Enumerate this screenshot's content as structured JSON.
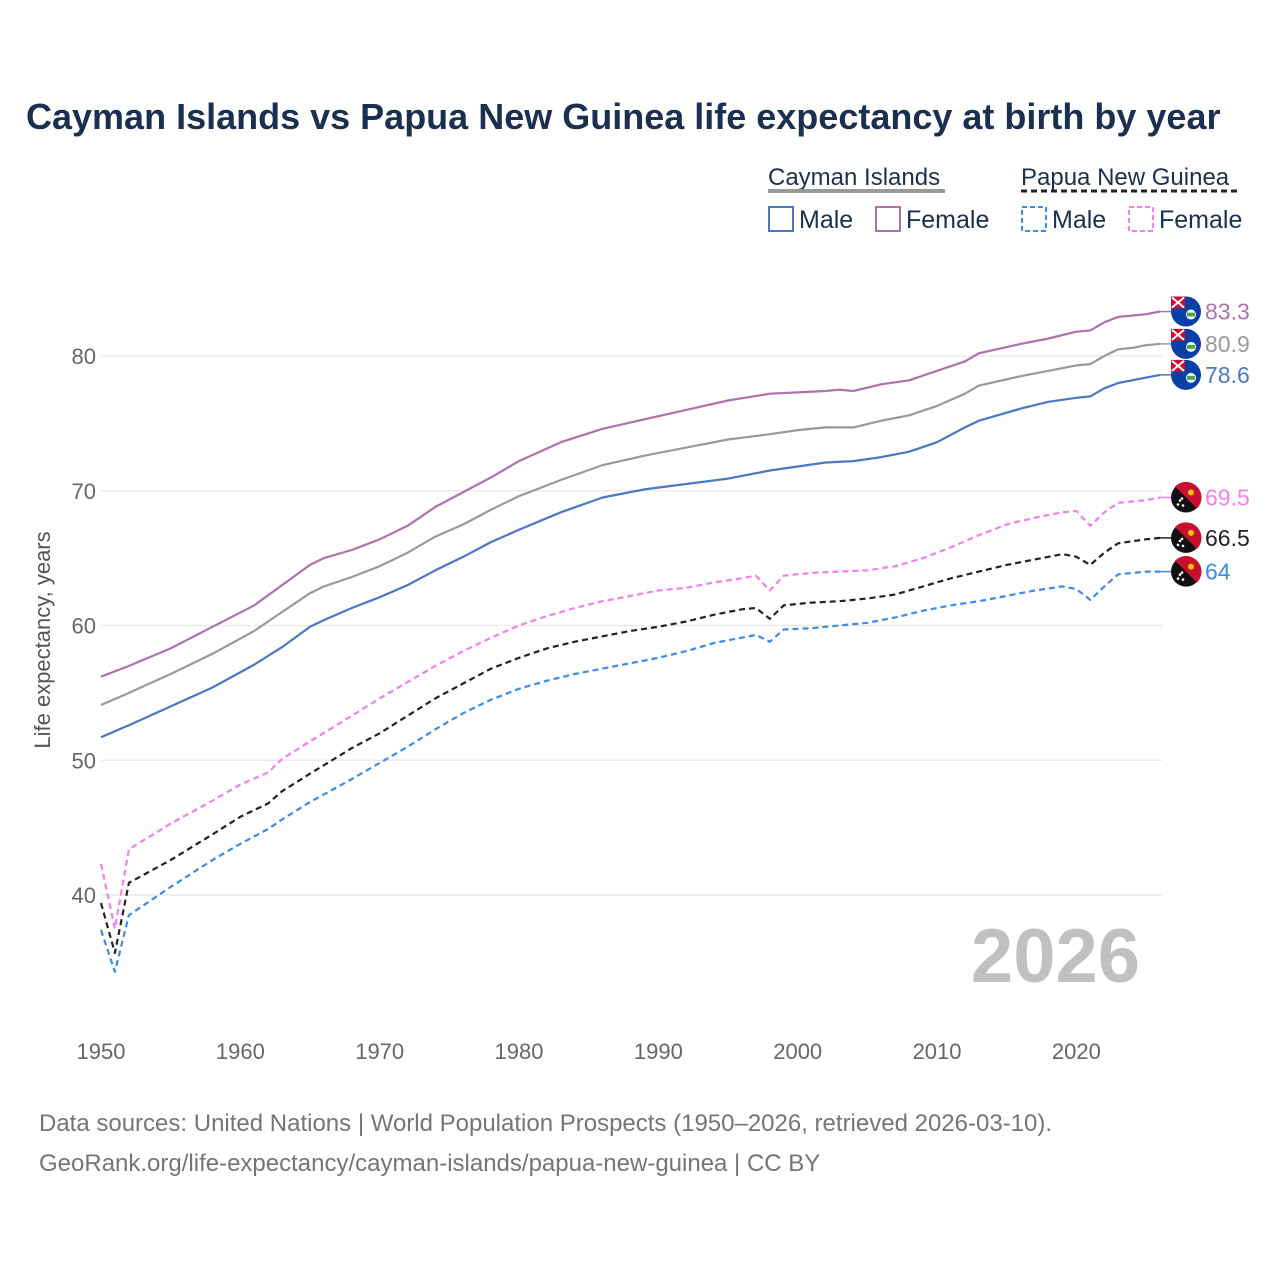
{
  "chart_data": {
    "type": "line",
    "title": "Cayman Islands vs Papua New Guinea life expectancy at birth by year",
    "ylabel": "Life expectancy, years",
    "xlabel": "",
    "xlim": [
      1950,
      2026
    ],
    "ylim": [
      34,
      84
    ],
    "x_ticks": [
      1950,
      1960,
      1970,
      1980,
      1990,
      2000,
      2010,
      2020
    ],
    "y_ticks": [
      40,
      50,
      60,
      70,
      80
    ],
    "current_year": "2026",
    "legend": {
      "groups": [
        {
          "name": "Cayman Islands",
          "line_color": "#999999",
          "dash": "solid",
          "items": [
            {
              "label": "Male",
              "color": "#4a78c4"
            },
            {
              "label": "Female",
              "color": "#b070b0"
            }
          ]
        },
        {
          "name": "Papua New Guinea",
          "line_color": "#222222",
          "dash": "dashed",
          "items": [
            {
              "label": "Male",
              "color": "#3d8be8"
            },
            {
              "label": "Female",
              "color": "#f47ef0"
            }
          ]
        }
      ]
    },
    "series": [
      {
        "name": "Cayman Islands Female",
        "color": "#b070b0",
        "dash": "solid",
        "end_label": "83.3",
        "flag": "cayman",
        "points": [
          [
            1950,
            56.2
          ],
          [
            1952,
            57.0
          ],
          [
            1955,
            58.3
          ],
          [
            1958,
            59.9
          ],
          [
            1961,
            61.5
          ],
          [
            1963,
            63.0
          ],
          [
            1965,
            64.5
          ],
          [
            1966,
            65.0
          ],
          [
            1968,
            65.6
          ],
          [
            1970,
            66.4
          ],
          [
            1972,
            67.4
          ],
          [
            1974,
            68.8
          ],
          [
            1976,
            69.9
          ],
          [
            1978,
            71.0
          ],
          [
            1980,
            72.2
          ],
          [
            1983,
            73.6
          ],
          [
            1986,
            74.6
          ],
          [
            1989,
            75.3
          ],
          [
            1992,
            76.0
          ],
          [
            1995,
            76.7
          ],
          [
            1998,
            77.2
          ],
          [
            2000,
            77.3
          ],
          [
            2002,
            77.4
          ],
          [
            2003,
            77.5
          ],
          [
            2004,
            77.4
          ],
          [
            2006,
            77.9
          ],
          [
            2008,
            78.2
          ],
          [
            2010,
            78.9
          ],
          [
            2012,
            79.6
          ],
          [
            2013,
            80.2
          ],
          [
            2016,
            80.9
          ],
          [
            2018,
            81.3
          ],
          [
            2020,
            81.8
          ],
          [
            2021,
            81.9
          ],
          [
            2022,
            82.5
          ],
          [
            2023,
            82.9
          ],
          [
            2024,
            83.0
          ],
          [
            2025,
            83.1
          ],
          [
            2026,
            83.3
          ]
        ]
      },
      {
        "name": "Cayman Islands Total",
        "color": "#999999",
        "dash": "solid",
        "end_label": "80.9",
        "flag": "cayman",
        "points": [
          [
            1950,
            54.1
          ],
          [
            1952,
            55.0
          ],
          [
            1955,
            56.4
          ],
          [
            1958,
            57.9
          ],
          [
            1961,
            59.6
          ],
          [
            1963,
            61.0
          ],
          [
            1965,
            62.4
          ],
          [
            1966,
            62.9
          ],
          [
            1968,
            63.6
          ],
          [
            1970,
            64.4
          ],
          [
            1972,
            65.4
          ],
          [
            1974,
            66.6
          ],
          [
            1976,
            67.5
          ],
          [
            1978,
            68.6
          ],
          [
            1980,
            69.6
          ],
          [
            1983,
            70.8
          ],
          [
            1986,
            71.9
          ],
          [
            1989,
            72.6
          ],
          [
            1992,
            73.2
          ],
          [
            1995,
            73.8
          ],
          [
            1998,
            74.2
          ],
          [
            2000,
            74.5
          ],
          [
            2002,
            74.7
          ],
          [
            2004,
            74.7
          ],
          [
            2006,
            75.2
          ],
          [
            2008,
            75.6
          ],
          [
            2010,
            76.3
          ],
          [
            2012,
            77.2
          ],
          [
            2013,
            77.8
          ],
          [
            2016,
            78.5
          ],
          [
            2018,
            78.9
          ],
          [
            2020,
            79.3
          ],
          [
            2021,
            79.4
          ],
          [
            2022,
            80.0
          ],
          [
            2023,
            80.5
          ],
          [
            2024,
            80.6
          ],
          [
            2025,
            80.8
          ],
          [
            2026,
            80.9
          ]
        ]
      },
      {
        "name": "Cayman Islands Male",
        "color": "#4a78c4",
        "dash": "solid",
        "end_label": "78.6",
        "flag": "cayman",
        "points": [
          [
            1950,
            51.7
          ],
          [
            1952,
            52.6
          ],
          [
            1955,
            54.0
          ],
          [
            1958,
            55.4
          ],
          [
            1961,
            57.1
          ],
          [
            1963,
            58.4
          ],
          [
            1965,
            59.9
          ],
          [
            1966,
            60.4
          ],
          [
            1968,
            61.3
          ],
          [
            1970,
            62.1
          ],
          [
            1972,
            63.0
          ],
          [
            1974,
            64.1
          ],
          [
            1976,
            65.1
          ],
          [
            1978,
            66.2
          ],
          [
            1980,
            67.1
          ],
          [
            1983,
            68.4
          ],
          [
            1986,
            69.5
          ],
          [
            1989,
            70.1
          ],
          [
            1992,
            70.5
          ],
          [
            1995,
            70.9
          ],
          [
            1998,
            71.5
          ],
          [
            2000,
            71.8
          ],
          [
            2002,
            72.1
          ],
          [
            2004,
            72.2
          ],
          [
            2006,
            72.5
          ],
          [
            2008,
            72.9
          ],
          [
            2010,
            73.6
          ],
          [
            2012,
            74.7
          ],
          [
            2013,
            75.2
          ],
          [
            2016,
            76.1
          ],
          [
            2018,
            76.6
          ],
          [
            2020,
            76.9
          ],
          [
            2021,
            77.0
          ],
          [
            2022,
            77.6
          ],
          [
            2023,
            78.0
          ],
          [
            2024,
            78.2
          ],
          [
            2025,
            78.4
          ],
          [
            2026,
            78.6
          ]
        ]
      },
      {
        "name": "Papua New Guinea Female",
        "color": "#f47ef0",
        "dash": "dashed",
        "end_label": "69.5",
        "flag": "png",
        "points": [
          [
            1950,
            42.3
          ],
          [
            1951,
            37.5
          ],
          [
            1952,
            43.4
          ],
          [
            1955,
            45.3
          ],
          [
            1958,
            47.0
          ],
          [
            1960,
            48.2
          ],
          [
            1962,
            49.1
          ],
          [
            1963,
            50.1
          ],
          [
            1965,
            51.4
          ],
          [
            1968,
            53.3
          ],
          [
            1970,
            54.6
          ],
          [
            1972,
            55.8
          ],
          [
            1974,
            57.0
          ],
          [
            1976,
            58.1
          ],
          [
            1978,
            59.1
          ],
          [
            1980,
            60.0
          ],
          [
            1982,
            60.7
          ],
          [
            1984,
            61.3
          ],
          [
            1986,
            61.8
          ],
          [
            1988,
            62.2
          ],
          [
            1990,
            62.6
          ],
          [
            1992,
            62.8
          ],
          [
            1994,
            63.2
          ],
          [
            1996,
            63.5
          ],
          [
            1997,
            63.7
          ],
          [
            1998,
            62.6
          ],
          [
            1999,
            63.7
          ],
          [
            2001,
            63.9
          ],
          [
            2003,
            64.0
          ],
          [
            2005,
            64.1
          ],
          [
            2007,
            64.4
          ],
          [
            2009,
            65.0
          ],
          [
            2011,
            65.8
          ],
          [
            2013,
            66.7
          ],
          [
            2015,
            67.5
          ],
          [
            2017,
            68.0
          ],
          [
            2019,
            68.4
          ],
          [
            2020,
            68.5
          ],
          [
            2021,
            67.4
          ],
          [
            2022,
            68.4
          ],
          [
            2023,
            69.1
          ],
          [
            2025,
            69.3
          ],
          [
            2026,
            69.5
          ]
        ]
      },
      {
        "name": "Papua New Guinea Total",
        "color": "#222222",
        "dash": "dashed",
        "end_label": "66.5",
        "flag": "png",
        "points": [
          [
            1950,
            39.4
          ],
          [
            1951,
            35.7
          ],
          [
            1952,
            40.9
          ],
          [
            1955,
            42.6
          ],
          [
            1958,
            44.5
          ],
          [
            1960,
            45.8
          ],
          [
            1962,
            46.8
          ],
          [
            1963,
            47.7
          ],
          [
            1965,
            49.0
          ],
          [
            1968,
            50.9
          ],
          [
            1970,
            52.0
          ],
          [
            1972,
            53.3
          ],
          [
            1974,
            54.6
          ],
          [
            1976,
            55.7
          ],
          [
            1978,
            56.8
          ],
          [
            1980,
            57.6
          ],
          [
            1982,
            58.3
          ],
          [
            1984,
            58.8
          ],
          [
            1986,
            59.2
          ],
          [
            1988,
            59.6
          ],
          [
            1990,
            59.9
          ],
          [
            1992,
            60.3
          ],
          [
            1994,
            60.8
          ],
          [
            1996,
            61.2
          ],
          [
            1997,
            61.3
          ],
          [
            1998,
            60.5
          ],
          [
            1999,
            61.5
          ],
          [
            2001,
            61.7
          ],
          [
            2003,
            61.8
          ],
          [
            2005,
            62.0
          ],
          [
            2007,
            62.3
          ],
          [
            2009,
            62.9
          ],
          [
            2011,
            63.5
          ],
          [
            2013,
            64.0
          ],
          [
            2015,
            64.5
          ],
          [
            2017,
            64.9
          ],
          [
            2019,
            65.3
          ],
          [
            2020,
            65.1
          ],
          [
            2021,
            64.5
          ],
          [
            2022,
            65.4
          ],
          [
            2023,
            66.1
          ],
          [
            2025,
            66.4
          ],
          [
            2026,
            66.5
          ]
        ]
      },
      {
        "name": "Papua New Guinea Male",
        "color": "#3d8be8",
        "dash": "dashed",
        "end_label": "64",
        "flag": "png",
        "points": [
          [
            1950,
            37.4
          ],
          [
            1951,
            34.3
          ],
          [
            1952,
            38.5
          ],
          [
            1955,
            40.6
          ],
          [
            1958,
            42.6
          ],
          [
            1960,
            43.8
          ],
          [
            1962,
            44.9
          ],
          [
            1963,
            45.6
          ],
          [
            1965,
            46.9
          ],
          [
            1968,
            48.6
          ],
          [
            1970,
            49.8
          ],
          [
            1972,
            51.0
          ],
          [
            1974,
            52.3
          ],
          [
            1976,
            53.5
          ],
          [
            1978,
            54.5
          ],
          [
            1980,
            55.3
          ],
          [
            1982,
            55.9
          ],
          [
            1984,
            56.4
          ],
          [
            1986,
            56.8
          ],
          [
            1988,
            57.2
          ],
          [
            1990,
            57.6
          ],
          [
            1992,
            58.1
          ],
          [
            1994,
            58.7
          ],
          [
            1996,
            59.1
          ],
          [
            1997,
            59.3
          ],
          [
            1998,
            58.8
          ],
          [
            1999,
            59.7
          ],
          [
            2001,
            59.8
          ],
          [
            2003,
            60.0
          ],
          [
            2005,
            60.2
          ],
          [
            2007,
            60.6
          ],
          [
            2009,
            61.1
          ],
          [
            2011,
            61.5
          ],
          [
            2013,
            61.8
          ],
          [
            2015,
            62.2
          ],
          [
            2017,
            62.6
          ],
          [
            2019,
            62.9
          ],
          [
            2020,
            62.7
          ],
          [
            2021,
            61.9
          ],
          [
            2022,
            62.9
          ],
          [
            2023,
            63.8
          ],
          [
            2025,
            64.0
          ],
          [
            2026,
            64.0
          ]
        ]
      }
    ]
  },
  "footer": {
    "source_line": "Data sources: United Nations | World Population Prospects (1950–2026, retrieved 2026-03-10).",
    "credit_line": "GeoRank.org/life-expectancy/cayman-islands/papua-new-guinea | CC BY"
  }
}
